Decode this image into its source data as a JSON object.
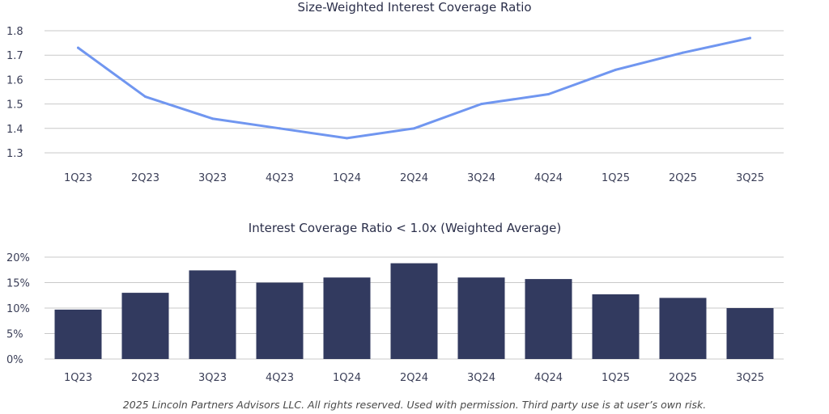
{
  "chart_data": [
    {
      "type": "line",
      "title": "Size-Weighted Interest Coverage Ratio",
      "categories": [
        "1Q23",
        "2Q23",
        "3Q23",
        "4Q23",
        "1Q24",
        "2Q24",
        "3Q24",
        "4Q24",
        "1Q25",
        "2Q25",
        "3Q25"
      ],
      "series": [
        {
          "values": [
            1.73,
            1.53,
            1.44,
            1.4,
            1.36,
            1.4,
            1.5,
            1.54,
            1.64,
            1.71,
            1.77
          ]
        }
      ],
      "yticks": [
        "1.3",
        "1.4",
        "1.5",
        "1.6",
        "1.7",
        "1.8"
      ],
      "ylim": [
        1.3,
        1.8
      ],
      "grid": true,
      "color": "#7096f0"
    },
    {
      "type": "bar",
      "title": "Interest Coverage Ratio < 1.0x (Weighted Average)",
      "categories": [
        "1Q23",
        "2Q23",
        "3Q23",
        "4Q23",
        "1Q24",
        "2Q24",
        "3Q24",
        "4Q24",
        "1Q25",
        "2Q25",
        "3Q25"
      ],
      "series": [
        {
          "values": [
            9.7,
            13.0,
            17.4,
            15.0,
            16.0,
            18.8,
            16.0,
            15.7,
            12.7,
            12.0,
            10.0
          ]
        }
      ],
      "yticks": [
        "0%",
        "5%",
        "10%",
        "15%",
        "20%"
      ],
      "ylim": [
        0,
        20
      ],
      "grid": true,
      "color": "#323a5f"
    }
  ],
  "footer": {
    "note": "2025 Lincoln Partners Advisors LLC. All rights reserved. Used with permission. Third party use is at user’s own risk."
  }
}
